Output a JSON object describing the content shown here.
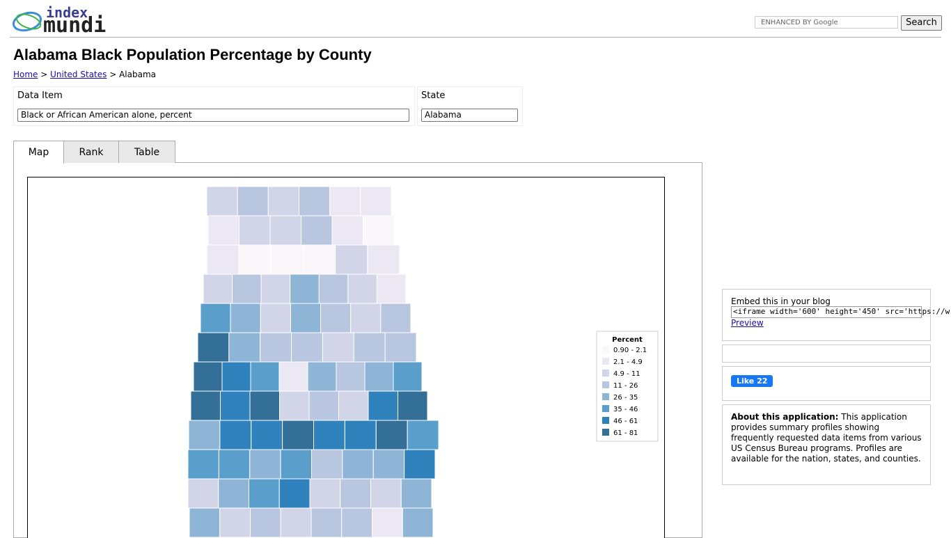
{
  "header": {
    "logo_top": "index",
    "logo_bottom": "mundi",
    "search_placeholder": "ENHANCED BY Google",
    "search_button": "Search"
  },
  "title": "Alabama Black Population Percentage by County",
  "breadcrumb": [
    "Home",
    "United States",
    "Alabama"
  ],
  "selectors": {
    "data_item_label": "Data Item",
    "data_item_value": "Black or African American alone, percent",
    "state_label": "State",
    "state_value": "Alabama"
  },
  "tabs": [
    "Map",
    "Rank",
    "Table"
  ],
  "legend": {
    "title": "Percent",
    "items": [
      "0.90 - 2.1",
      "2.1 - 4.9",
      "4.9 - 11",
      "11 - 26",
      "26 - 35",
      "35 - 46",
      "46 - 61",
      "61 - 81"
    ]
  },
  "sidebar": {
    "embed_label": "Embed this in your blog",
    "embed_code": "<iframe width='600' height='450' src='https://w",
    "preview": "Preview",
    "like": "Like 22",
    "about_title": "About this application:",
    "about_text": "This application provides summary profiles showing frequently requested data items from various US Census Bureau programs. Profiles are available for the nation, states, and counties."
  }
}
